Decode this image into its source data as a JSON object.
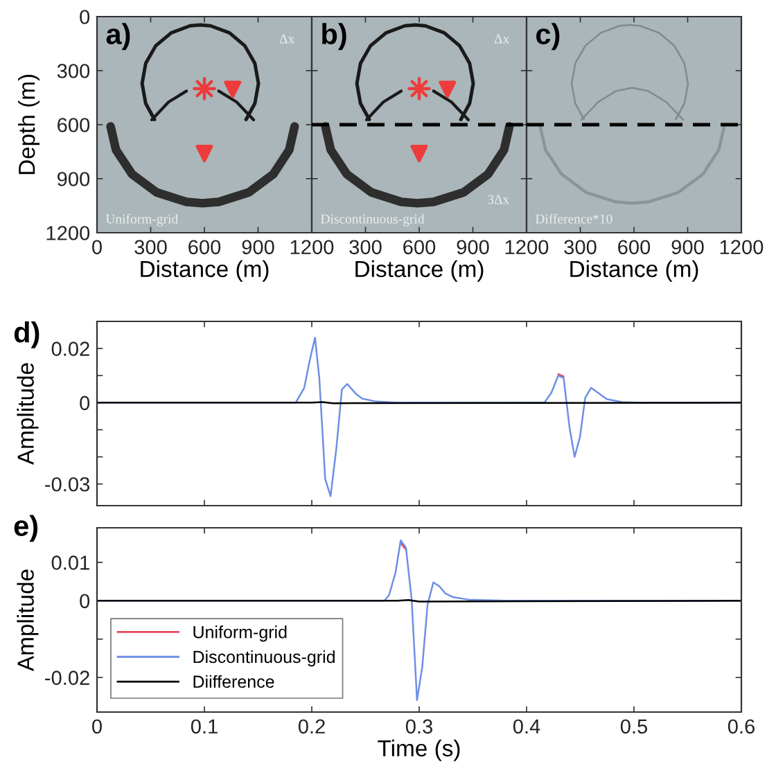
{
  "chart_data": [
    {
      "type": "line",
      "xlabel": "Distance (m)",
      "ylabel": "Depth (m)",
      "xlim": [
        0,
        1200
      ],
      "ylim": [
        1200,
        0
      ],
      "xticks": [
        0,
        300,
        600,
        900,
        1200
      ],
      "yticks": [
        0,
        300,
        600,
        900,
        1200
      ],
      "annotations": [
        "a)",
        "Δx",
        "Uniform-grid"
      ],
      "series": [
        {
          "color": "#1a1a1a",
          "x": [
            321,
            272,
            252,
            272,
            328,
            415,
            520,
            577,
            634,
            740,
            826,
            882,
            902,
            882,
            833
          ],
          "values": [
            571,
            482,
            371,
            260,
            162,
            90,
            51,
            46,
            51,
            90,
            162,
            260,
            371,
            482,
            571
          ]
        },
        {
          "color": "#1a1a1a",
          "x": [
            306,
            400,
            500,
            590,
            680,
            780,
            875
          ],
          "values": [
            573,
            474,
            413,
            null,
            413,
            474,
            573
          ]
        },
        {
          "color": "#2e2e2e",
          "x": [
            76,
            106,
            196,
            333,
            500,
            590,
            680,
            848,
            985,
            1074,
            1104
          ],
          "values": [
            610,
            740,
            875,
            976,
            1029,
            1036,
            1029,
            976,
            875,
            740,
            610
          ]
        },
        {
          "type": "scatter",
          "marker": "star",
          "color": "#ee3b3b",
          "x": [
            600
          ],
          "values": [
            400
          ]
        },
        {
          "type": "scatter",
          "marker": "triangle",
          "color": "#ee3b3b",
          "x": [
            758,
            600
          ],
          "values": [
            404,
            760
          ]
        }
      ]
    },
    {
      "type": "line",
      "xlabel": "Distance (m)",
      "xlim": [
        0,
        1200
      ],
      "ylim": [
        1200,
        0
      ],
      "xticks": [
        {
          "value": 0,
          "label": null
        },
        300,
        600,
        900,
        1200
      ],
      "yticks": [
        {
          "value": 0,
          "label": null
        },
        {
          "value": 300,
          "label": null
        },
        {
          "value": 600,
          "label": null
        },
        {
          "value": 900,
          "label": null
        },
        {
          "value": 1200,
          "label": null
        }
      ],
      "tick_labels": "x",
      "annotations": [
        "b)",
        "Δx",
        "3Δx",
        "Discontinuous-grid"
      ],
      "ref_lines": [
        {
          "axis": "y",
          "value": 600,
          "color": "#000000",
          "line_style": "dashed"
        }
      ],
      "series": [
        {
          "color": "#1a1a1a",
          "x": [
            321,
            272,
            252,
            272,
            328,
            415,
            520,
            577,
            634,
            740,
            826,
            882,
            902,
            882,
            833
          ],
          "values": [
            571,
            482,
            371,
            260,
            162,
            90,
            51,
            46,
            51,
            90,
            162,
            260,
            371,
            482,
            571
          ]
        },
        {
          "color": "#1a1a1a",
          "x": [
            306,
            400,
            500,
            590,
            680,
            780,
            875
          ],
          "values": [
            573,
            474,
            413,
            null,
            413,
            474,
            573
          ]
        },
        {
          "color": "#2e2e2e",
          "x": [
            76,
            106,
            196,
            333,
            500,
            590,
            680,
            848,
            985,
            1074,
            1104
          ],
          "values": [
            610,
            740,
            875,
            976,
            1029,
            1036,
            1029,
            976,
            875,
            740,
            610
          ]
        },
        {
          "type": "scatter",
          "marker": "star",
          "color": "#ee3b3b",
          "x": [
            600
          ],
          "values": [
            400
          ]
        },
        {
          "type": "scatter",
          "marker": "triangle",
          "color": "#ee3b3b",
          "x": [
            758,
            600
          ],
          "values": [
            404,
            760
          ]
        }
      ]
    },
    {
      "type": "line",
      "xlabel": "Distance (m)",
      "xlim": [
        0,
        1200
      ],
      "ylim": [
        1200,
        0
      ],
      "xticks": [
        {
          "value": 0,
          "label": null
        },
        300,
        600,
        900,
        1200
      ],
      "yticks": [
        {
          "value": 0,
          "label": null
        },
        {
          "value": 300,
          "label": null
        },
        {
          "value": 600,
          "label": null
        },
        {
          "value": 900,
          "label": null
        },
        {
          "value": 1200,
          "label": null
        }
      ],
      "tick_labels": "x",
      "annotations": [
        "c)",
        "Difference*10"
      ],
      "ref_lines": [
        {
          "axis": "y",
          "value": 600,
          "color": "#000000",
          "line_style": "dashed"
        }
      ],
      "series": [
        {
          "color": "#7f8a8d",
          "x": [
            321,
            272,
            252,
            272,
            328,
            415,
            520,
            577,
            634,
            740,
            826,
            882,
            902,
            882,
            833
          ],
          "values": [
            571,
            482,
            371,
            260,
            162,
            90,
            51,
            46,
            51,
            90,
            162,
            260,
            371,
            482,
            571
          ]
        },
        {
          "color": "#7f8a8d",
          "x": [
            306,
            400,
            500,
            590,
            680,
            780,
            875
          ],
          "values": [
            573,
            474,
            413,
            395,
            413,
            474,
            573
          ]
        },
        {
          "color": "#8a9598",
          "x": [
            76,
            106,
            196,
            333,
            500,
            590,
            680,
            848,
            985,
            1074,
            1104
          ],
          "values": [
            610,
            740,
            875,
            976,
            1029,
            1036,
            1029,
            976,
            875,
            740,
            610
          ]
        }
      ]
    },
    {
      "type": "line",
      "ylabel": "Amplitude",
      "xlim": [
        0,
        0.6
      ],
      "ylim": [
        -0.038,
        0.03
      ],
      "tick_labels": "y",
      "xticks": [
        {
          "value": 0,
          "label": null
        },
        {
          "value": 0.1,
          "label": null
        },
        {
          "value": 0.2,
          "label": null
        },
        {
          "value": 0.3,
          "label": null
        },
        {
          "value": 0.4,
          "label": null
        },
        {
          "value": 0.5,
          "label": null
        },
        {
          "value": 0.6,
          "label": null
        }
      ],
      "yticks": [
        -0.03,
        {
          "value": -0.02,
          "label": null
        },
        {
          "value": -0.01,
          "label": null
        },
        0,
        {
          "value": 0.01,
          "label": null
        },
        0.02
      ],
      "annotations": [
        "d)"
      ],
      "series": [
        {
          "color": "#e8485a",
          "x": [
            0.4295,
            0.4345
          ],
          "values": [
            0.0105,
            0.0097
          ]
        },
        {
          "color": "#6f8fe6",
          "x": [
            0,
            0.185,
            0.193,
            0.198,
            0.203,
            0.207,
            0.2125,
            0.2175,
            0.223,
            0.228,
            0.233,
            0.241,
            0.247,
            0.259,
            0.279,
            0.4166,
            0.423,
            0.4295,
            0.4345,
            0.44,
            0.4447,
            0.4497,
            0.4546,
            0.46,
            0.4667,
            0.4747,
            0.489,
            0.502,
            0.6
          ],
          "values": [
            0,
            0,
            0.0055,
            0.0155,
            0.024,
            0.0091,
            -0.0282,
            -0.0345,
            -0.0164,
            0.0049,
            0.0069,
            0.0033,
            0.0015,
            0.0005,
            0,
            0,
            0.0036,
            0.01,
            0.0091,
            -0.0091,
            -0.02,
            -0.0127,
            0.0018,
            0.0055,
            0.0036,
            0.0013,
            0.0002,
            0,
            0
          ]
        },
        {
          "color": "#000000",
          "x": [
            0,
            0.2,
            0.21,
            0.22,
            0.6
          ],
          "values": [
            0,
            0,
            0.0002,
            -0.0002,
            0
          ]
        }
      ]
    },
    {
      "type": "line",
      "xlabel": "Time (s)",
      "ylabel": "Amplitude",
      "xlim": [
        0,
        0.6
      ],
      "ylim": [
        -0.029,
        0.019
      ],
      "legend": "lower left",
      "xticks": [
        0,
        0.1,
        0.2,
        0.3,
        0.4,
        0.5,
        0.6
      ],
      "yticks": [
        -0.02,
        {
          "value": -0.01,
          "label": null
        },
        0,
        0.01
      ],
      "annotations": [
        "e)"
      ],
      "series": [
        {
          "name": "Uniform-grid",
          "color": "#e8485a",
          "x": [
            0.2828,
            0.2877
          ],
          "values": [
            0.015,
            0.0133
          ]
        },
        {
          "name": "Discontinuous-grid",
          "color": "#6f8fe6",
          "x": [
            0,
            0.2676,
            0.272,
            0.278,
            0.2828,
            0.2877,
            0.293,
            0.298,
            0.3029,
            0.3078,
            0.3132,
            0.319,
            0.3244,
            0.332,
            0.3459,
            0.3816,
            0.6
          ],
          "values": [
            0,
            0,
            0.0015,
            0.0074,
            0.0157,
            0.0138,
            0.0003,
            -0.0259,
            -0.0172,
            -0.001,
            0.0048,
            0.0037,
            0.0019,
            0.0009,
            0.0003,
            0,
            0
          ]
        },
        {
          "name": "Diifference",
          "color": "#000000",
          "x": [
            0,
            0.28,
            0.29,
            0.3,
            0.6
          ],
          "values": [
            0,
            0,
            0.0002,
            -0.0002,
            0
          ]
        }
      ]
    }
  ]
}
